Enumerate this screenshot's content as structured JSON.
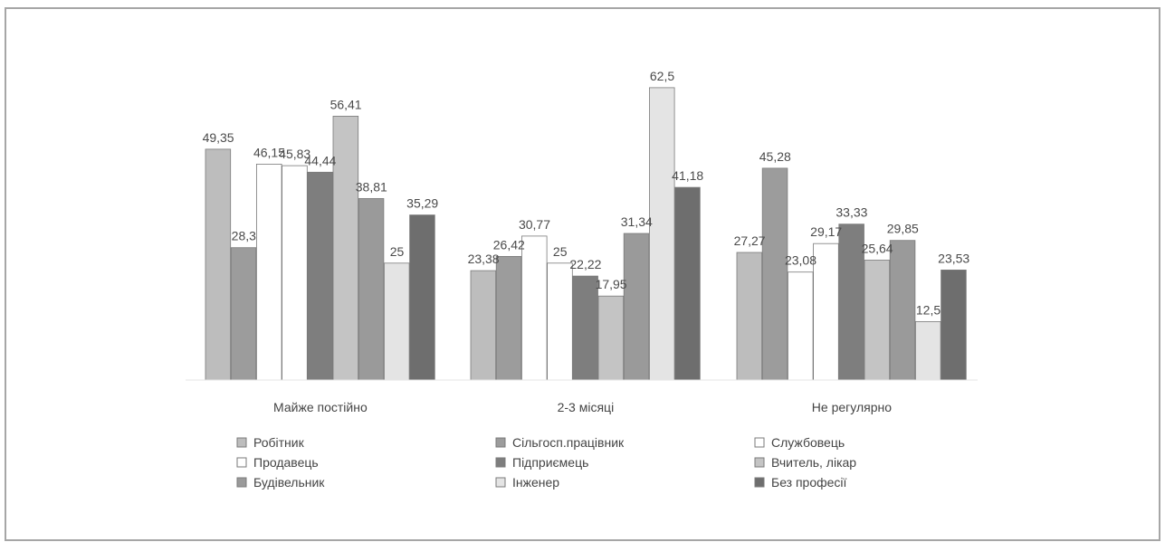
{
  "chart_data": {
    "type": "bar",
    "categories": [
      "Майже постійно",
      "2-3 місяці",
      "Не регулярно"
    ],
    "series": [
      {
        "name": "Робітник",
        "values": [
          49.35,
          23.38,
          27.27
        ],
        "color": "#bdbdbd"
      },
      {
        "name": "Сільгосп.працівник",
        "values": [
          28.3,
          26.42,
          45.28
        ],
        "color": "#9c9c9c"
      },
      {
        "name": "Службовець",
        "values": [
          46.15,
          30.77,
          23.08
        ],
        "color": "#ffffff"
      },
      {
        "name": "Продавець",
        "values": [
          45.83,
          25,
          29.17
        ],
        "color": "#ffffff"
      },
      {
        "name": "Підприємець",
        "values": [
          44.44,
          22.22,
          33.33
        ],
        "color": "#7e7e7e"
      },
      {
        "name": "Вчитель, лікар",
        "values": [
          56.41,
          17.95,
          25.64
        ],
        "color": "#c4c4c4"
      },
      {
        "name": "Будівельник",
        "values": [
          38.81,
          31.34,
          29.85
        ],
        "color": "#9a9a9a"
      },
      {
        "name": "Інженер",
        "values": [
          25,
          62.5,
          12.5
        ],
        "color": "#e4e4e4"
      },
      {
        "name": "Без професії",
        "values": [
          35.29,
          41.18,
          23.53
        ],
        "color": "#6e6e6e"
      }
    ],
    "data_labels": [
      [
        "49,35",
        "28,3",
        "46,15",
        "45,83",
        "44,44",
        "56,41",
        "38,81",
        "25",
        "35,29"
      ],
      [
        "23,38",
        "26,42",
        "30,77",
        "25",
        "22,22",
        "17,95",
        "31,34",
        "62,5",
        "41,18"
      ],
      [
        "27,27",
        "45,28",
        "23,08",
        "29,17",
        "33,33",
        "25,64",
        "29,85",
        "12,5",
        "23,53"
      ]
    ],
    "ylim": [
      0,
      65
    ],
    "grid": false,
    "legend_position": "bottom",
    "title": "",
    "xlabel": "",
    "ylabel": ""
  }
}
